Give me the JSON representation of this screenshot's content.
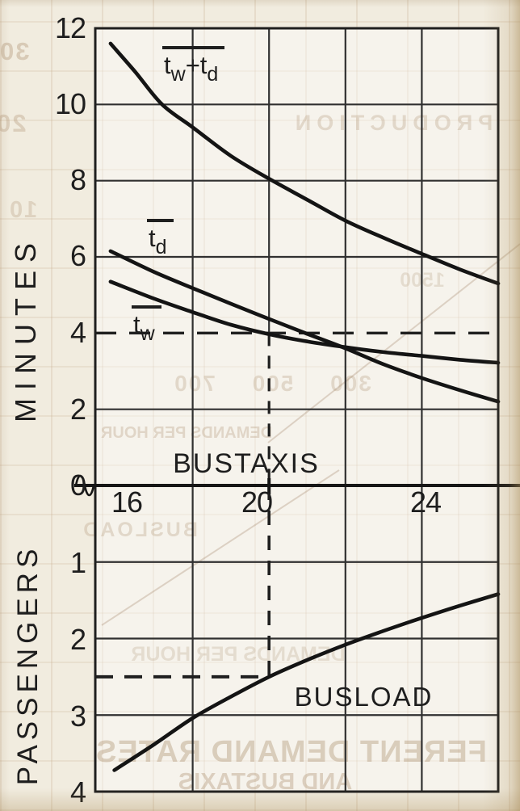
{
  "axis_labels": {
    "minutes": "MINUTES",
    "passengers": "PASSENGERS",
    "bustaxis": "BUSTAXIS",
    "busload": "BUSLOAD"
  },
  "curve_labels": {
    "sum": {
      "t1": "t",
      "sub1": "w",
      "plus": "+",
      "t2": "t",
      "sub2": "d"
    },
    "td": {
      "t": "t",
      "sub": "d"
    },
    "tw": {
      "t": "t",
      "sub": "w"
    }
  },
  "chart_data": [
    {
      "type": "line",
      "title": "",
      "xlabel": "BUSTAXIS",
      "ylabel": "MINUTES",
      "xlim": [
        15.45,
        26
      ],
      "ylim": [
        0,
        12
      ],
      "grid": true,
      "legend_position": "inline-curve-labels",
      "axis_break_at_origin": true,
      "x_ticks": [
        {
          "value": 16,
          "label": "16"
        },
        {
          "value": 20,
          "label": "20"
        },
        {
          "value": 24,
          "label": "24"
        }
      ],
      "y_ticks": [
        {
          "value": 12,
          "label": "12"
        },
        {
          "value": 10,
          "label": "10"
        },
        {
          "value": 8,
          "label": "8"
        },
        {
          "value": 6,
          "label": "6"
        },
        {
          "value": 4,
          "label": "4"
        },
        {
          "value": 2,
          "label": "2"
        },
        {
          "value": 0,
          "label": "0"
        }
      ],
      "x_gridlines_solid": [
        18,
        22,
        24
      ],
      "x_gridline_partial": {
        "x": 20,
        "solid_from_top_to_y": 4
      },
      "y_gridlines_solid": [
        2,
        6,
        8,
        10
      ],
      "y_gridline_dashed": 4,
      "series": [
        {
          "id": "tw-plus-td",
          "label": "t̄w+t̄d",
          "x": [
            15.85,
            16.5,
            17.2,
            18,
            19,
            20,
            21,
            22,
            23,
            24,
            25,
            26
          ],
          "y": [
            11.6,
            10.85,
            10.0,
            9.4,
            8.65,
            8.05,
            7.5,
            6.95,
            6.5,
            6.08,
            5.67,
            5.3
          ]
        },
        {
          "id": "td",
          "label": "t̄d",
          "x": [
            15.85,
            17,
            18,
            19,
            20,
            21,
            22,
            23,
            24,
            25,
            26
          ],
          "y": [
            6.15,
            5.6,
            5.18,
            4.77,
            4.37,
            3.98,
            3.6,
            3.18,
            2.82,
            2.5,
            2.2
          ]
        },
        {
          "id": "tw",
          "label": "t̄w",
          "x": [
            15.85,
            17,
            18,
            19,
            20,
            21,
            22,
            23,
            24,
            25,
            26
          ],
          "y": [
            5.35,
            4.9,
            4.55,
            4.22,
            3.97,
            3.78,
            3.63,
            3.5,
            3.4,
            3.3,
            3.22
          ]
        }
      ]
    },
    {
      "type": "line",
      "title": "",
      "xlabel": "BUSTAXIS",
      "ylabel": "PASSENGERS",
      "xlim": [
        15.45,
        26
      ],
      "ylim": [
        0,
        4
      ],
      "y_axis_inverted": true,
      "grid": true,
      "y_ticks": [
        {
          "value": 1,
          "label": "1"
        },
        {
          "value": 2,
          "label": "2"
        },
        {
          "value": 3,
          "label": "3"
        },
        {
          "value": 4,
          "label": "4"
        }
      ],
      "x_gridlines_solid": [
        18,
        22,
        24
      ],
      "y_gridlines_solid": [
        1,
        2,
        3
      ],
      "crosshair_dashed": {
        "x": 20,
        "y": 2.5
      },
      "series": [
        {
          "id": "busload",
          "label": "BUSLOAD",
          "x": [
            15.95,
            17,
            18,
            19,
            20,
            21,
            22,
            23,
            24,
            25,
            26
          ],
          "y": [
            3.72,
            3.38,
            3.04,
            2.76,
            2.5,
            2.28,
            2.08,
            1.9,
            1.73,
            1.57,
            1.42
          ]
        }
      ]
    }
  ],
  "ghost_text": {
    "items": [
      {
        "text": "30"
      },
      {
        "text": "20"
      },
      {
        "text": "10"
      },
      {
        "text": "PRODUCTION"
      },
      {
        "text": "1500"
      },
      {
        "text": "300  500  700"
      },
      {
        "text": "DEMANDS PER HOUR"
      },
      {
        "text": "BUSLOAD"
      },
      {
        "text": "DEMANDS PER HOUR"
      },
      {
        "text": "FERENT DEMAND RATES"
      },
      {
        "text": "AND BUSTAXIS"
      }
    ]
  }
}
